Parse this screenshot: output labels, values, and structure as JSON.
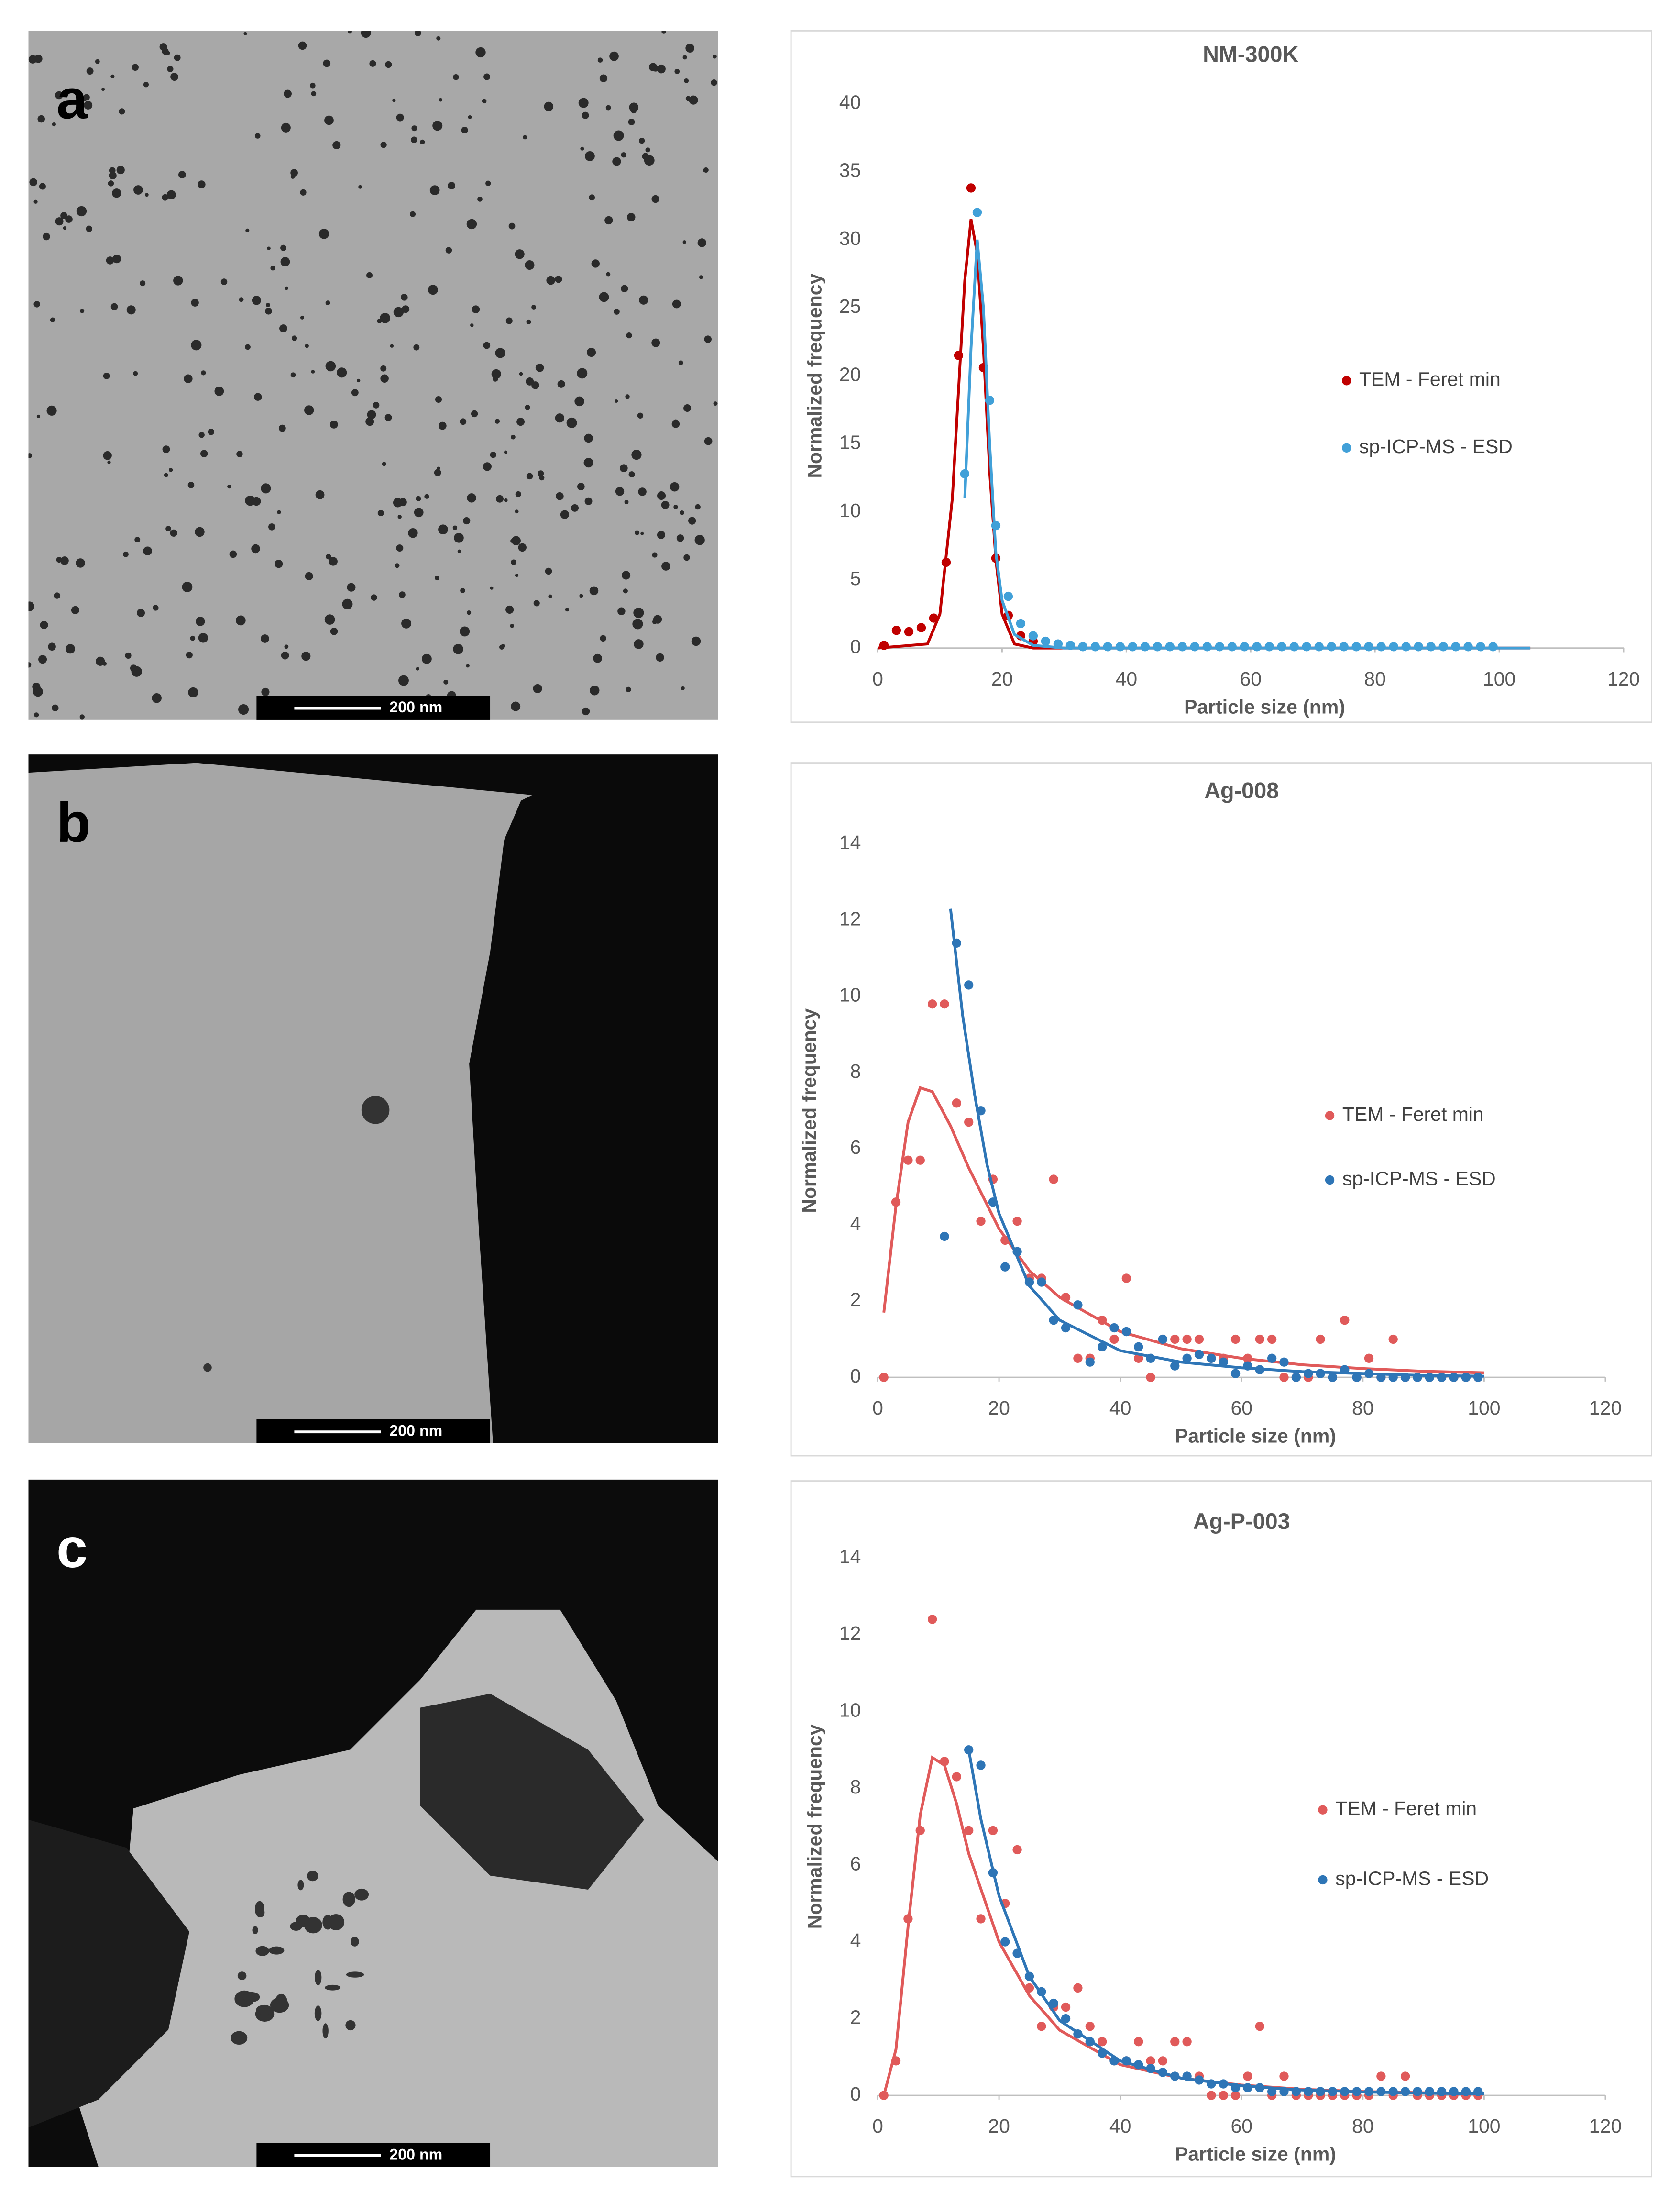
{
  "panels": [
    {
      "label": "a",
      "scale_bar": "200 nm"
    },
    {
      "label": "b",
      "scale_bar": "200 nm"
    },
    {
      "label": "c",
      "scale_bar": "200 nm"
    }
  ],
  "chart_data": [
    {
      "type": "scatter",
      "title": "NM-300K",
      "xlabel": "Particle size (nm)",
      "ylabel": "Normalized frequency",
      "xlim": [
        0,
        120
      ],
      "ylim": [
        0,
        40
      ],
      "xticks": [
        0,
        20,
        40,
        60,
        80,
        100,
        120
      ],
      "yticks": [
        0,
        5,
        10,
        15,
        20,
        25,
        30,
        35,
        40
      ],
      "series": [
        {
          "name": "TEM - Feret min",
          "color": "#c00000",
          "x": [
            1,
            3,
            5,
            7,
            9,
            11,
            13,
            15,
            17,
            19,
            21,
            23,
            25
          ],
          "values": [
            0.2,
            1.3,
            1.2,
            1.5,
            2.2,
            6.3,
            21.5,
            33.8,
            20.6,
            6.6,
            2.4,
            0.9,
            0.5
          ],
          "fit": {
            "x": [
              0,
              8,
              10,
              12,
              13,
              14,
              15,
              16,
              17,
              18,
              19,
              20,
              22,
              25,
              105
            ],
            "values": [
              0,
              0.3,
              2.5,
              11,
              19,
              27,
              31.5,
              29,
              22,
              13,
              6.5,
              2.5,
              0.3,
              0,
              0
            ]
          }
        },
        {
          "name": "sp-ICP-MS - ESD",
          "color": "#41a0d8",
          "x": [
            14,
            16,
            18,
            19,
            21,
            23,
            25,
            27,
            29,
            31,
            33,
            35,
            37,
            39,
            41,
            43,
            45,
            47,
            49,
            51,
            53,
            55,
            57,
            59,
            61,
            63,
            65,
            67,
            69,
            71,
            73,
            75,
            77,
            79,
            81,
            83,
            85,
            87,
            89,
            91,
            93,
            95,
            97,
            99
          ],
          "values": [
            12.8,
            32,
            18.2,
            9,
            3.8,
            1.8,
            0.9,
            0.5,
            0.3,
            0.2,
            0.1,
            0.1,
            0.1,
            0.1,
            0.1,
            0.1,
            0.1,
            0.1,
            0.1,
            0.1,
            0.1,
            0.1,
            0.1,
            0.1,
            0.1,
            0.1,
            0.1,
            0.1,
            0.1,
            0.1,
            0.1,
            0.1,
            0.1,
            0.1,
            0.1,
            0.1,
            0.1,
            0.1,
            0.1,
            0.1,
            0.1,
            0.1,
            0.1,
            0.1
          ],
          "fit": {
            "x": [
              14,
              15,
              16,
              17,
              18,
              19,
              20,
              22,
              25,
              30,
              105
            ],
            "values": [
              11,
              22,
              30,
              25,
              15,
              7,
              3.5,
              1,
              0.2,
              0,
              0
            ]
          }
        }
      ]
    },
    {
      "type": "scatter",
      "title": "Ag-008",
      "xlabel": "Particle size (nm)",
      "ylabel": "Normalized frequency",
      "xlim": [
        0,
        120
      ],
      "ylim": [
        0,
        14
      ],
      "xticks": [
        0,
        20,
        40,
        60,
        80,
        100,
        120
      ],
      "yticks": [
        0,
        2,
        4,
        6,
        8,
        10,
        12,
        14
      ],
      "series": [
        {
          "name": "TEM - Feret min",
          "color": "#e05a5a",
          "x": [
            1,
            3,
            5,
            7,
            9,
            11,
            13,
            15,
            17,
            19,
            21,
            23,
            25,
            27,
            29,
            31,
            33,
            35,
            37,
            39,
            41,
            43,
            45,
            47,
            49,
            51,
            53,
            55,
            57,
            59,
            61,
            63,
            65,
            67,
            69,
            71,
            73,
            75,
            77,
            79,
            81,
            83,
            85,
            87,
            89,
            91,
            93,
            95,
            97,
            99
          ],
          "values": [
            0,
            4.6,
            5.7,
            5.7,
            9.8,
            9.8,
            7.2,
            6.7,
            4.1,
            5.2,
            3.6,
            4.1,
            2.6,
            2.6,
            5.2,
            2.1,
            0.5,
            0.5,
            1.5,
            1.0,
            2.6,
            0.5,
            0,
            1.0,
            1.0,
            1.0,
            1.0,
            0.5,
            0.5,
            1.0,
            0.5,
            1.0,
            1.0,
            0,
            0,
            0,
            1.0,
            0,
            1.5,
            0,
            0.5,
            0,
            1.0,
            0,
            0,
            0,
            0,
            0,
            0,
            0
          ],
          "fit": {
            "x": [
              1,
              3,
              5,
              7,
              9,
              12,
              15,
              20,
              25,
              30,
              40,
              50,
              60,
              70,
              80,
              90,
              100
            ],
            "values": [
              1.7,
              4.5,
              6.7,
              7.6,
              7.5,
              6.6,
              5.5,
              3.9,
              2.8,
              2.1,
              1.2,
              0.75,
              0.5,
              0.33,
              0.23,
              0.16,
              0.12
            ]
          }
        },
        {
          "name": "sp-ICP-MS - ESD",
          "color": "#2e75b6",
          "x": [
            11,
            13,
            15,
            17,
            19,
            21,
            23,
            25,
            27,
            29,
            31,
            33,
            35,
            37,
            39,
            41,
            43,
            45,
            47,
            49,
            51,
            53,
            55,
            57,
            59,
            61,
            63,
            65,
            67,
            69,
            71,
            73,
            75,
            77,
            79,
            81,
            83,
            85,
            87,
            89,
            91,
            93,
            95,
            97,
            99
          ],
          "values": [
            3.7,
            11.4,
            10.3,
            7.0,
            4.6,
            2.9,
            3.3,
            2.5,
            2.5,
            1.5,
            1.3,
            1.9,
            0.4,
            0.8,
            1.3,
            1.2,
            0.8,
            0.5,
            1.0,
            0.3,
            0.5,
            0.6,
            0.5,
            0.4,
            0.1,
            0.3,
            0.2,
            0.5,
            0.4,
            0,
            0.1,
            0.1,
            0,
            0.2,
            0,
            0.1,
            0,
            0,
            0,
            0,
            0,
            0,
            0,
            0,
            0
          ],
          "fit": {
            "x": [
              12,
              14,
              16,
              18,
              20,
              25,
              30,
              40,
              50,
              60,
              70,
              80,
              90,
              100
            ],
            "values": [
              12.3,
              9.5,
              7.4,
              5.6,
              4.3,
              2.4,
              1.5,
              0.7,
              0.4,
              0.25,
              0.15,
              0.1,
              0.05,
              0.03
            ]
          }
        }
      ]
    },
    {
      "type": "scatter",
      "title": "Ag-P-003",
      "xlabel": "Particle size (nm)",
      "ylabel": "Normalized frequency",
      "xlim": [
        0,
        120
      ],
      "ylim": [
        0,
        14
      ],
      "xticks": [
        0,
        20,
        40,
        60,
        80,
        100,
        120
      ],
      "yticks": [
        0,
        2,
        4,
        6,
        8,
        10,
        12,
        14
      ],
      "series": [
        {
          "name": "TEM - Feret min",
          "color": "#e05a5a",
          "x": [
            1,
            3,
            5,
            7,
            9,
            11,
            13,
            15,
            17,
            19,
            21,
            23,
            25,
            27,
            29,
            31,
            33,
            35,
            37,
            39,
            41,
            43,
            45,
            47,
            49,
            51,
            53,
            55,
            57,
            59,
            61,
            63,
            65,
            67,
            69,
            71,
            73,
            75,
            77,
            79,
            81,
            83,
            85,
            87,
            89,
            91,
            93,
            95,
            97,
            99
          ],
          "values": [
            0,
            0.9,
            4.6,
            6.9,
            12.4,
            8.7,
            8.3,
            6.9,
            4.6,
            6.9,
            5.0,
            6.4,
            2.8,
            1.8,
            2.3,
            2.3,
            2.8,
            1.8,
            1.4,
            0.9,
            0.9,
            1.4,
            0.9,
            0.9,
            1.4,
            1.4,
            0.5,
            0,
            0,
            0,
            0.5,
            1.8,
            0,
            0.5,
            0,
            0,
            0,
            0,
            0,
            0,
            0,
            0.5,
            0,
            0.5,
            0,
            0,
            0,
            0,
            0,
            0
          ],
          "fit": {
            "x": [
              1,
              3,
              5,
              7,
              9,
              11,
              13,
              15,
              20,
              25,
              30,
              40,
              50,
              60,
              70,
              80,
              90,
              100
            ],
            "values": [
              0,
              1.2,
              4.4,
              7.3,
              8.8,
              8.6,
              7.6,
              6.3,
              4.0,
              2.6,
              1.7,
              0.8,
              0.45,
              0.27,
              0.16,
              0.1,
              0.07,
              0.05
            ]
          }
        },
        {
          "name": "sp-ICP-MS - ESD",
          "color": "#2e75b6",
          "x": [
            15,
            17,
            19,
            21,
            23,
            25,
            27,
            29,
            31,
            33,
            35,
            37,
            39,
            41,
            43,
            45,
            47,
            49,
            51,
            53,
            55,
            57,
            59,
            61,
            63,
            65,
            67,
            69,
            71,
            73,
            75,
            77,
            79,
            81,
            83,
            85,
            87,
            89,
            91,
            93,
            95,
            97,
            99
          ],
          "values": [
            9.0,
            8.6,
            5.8,
            4.0,
            3.7,
            3.1,
            2.7,
            2.4,
            2.0,
            1.6,
            1.4,
            1.1,
            0.9,
            0.9,
            0.8,
            0.7,
            0.6,
            0.5,
            0.5,
            0.4,
            0.3,
            0.3,
            0.2,
            0.2,
            0.2,
            0.1,
            0.1,
            0.1,
            0.1,
            0.1,
            0.1,
            0.1,
            0.1,
            0.1,
            0.1,
            0.1,
            0.1,
            0.1,
            0.1,
            0.1,
            0.1,
            0.1,
            0.1
          ],
          "fit": {
            "x": [
              15,
              17,
              20,
              25,
              30,
              40,
              50,
              60,
              70,
              80,
              90,
              100
            ],
            "values": [
              9.0,
              7.2,
              5.2,
              3.1,
              1.95,
              0.9,
              0.45,
              0.25,
              0.14,
              0.09,
              0.06,
              0.04
            ]
          }
        }
      ]
    }
  ]
}
